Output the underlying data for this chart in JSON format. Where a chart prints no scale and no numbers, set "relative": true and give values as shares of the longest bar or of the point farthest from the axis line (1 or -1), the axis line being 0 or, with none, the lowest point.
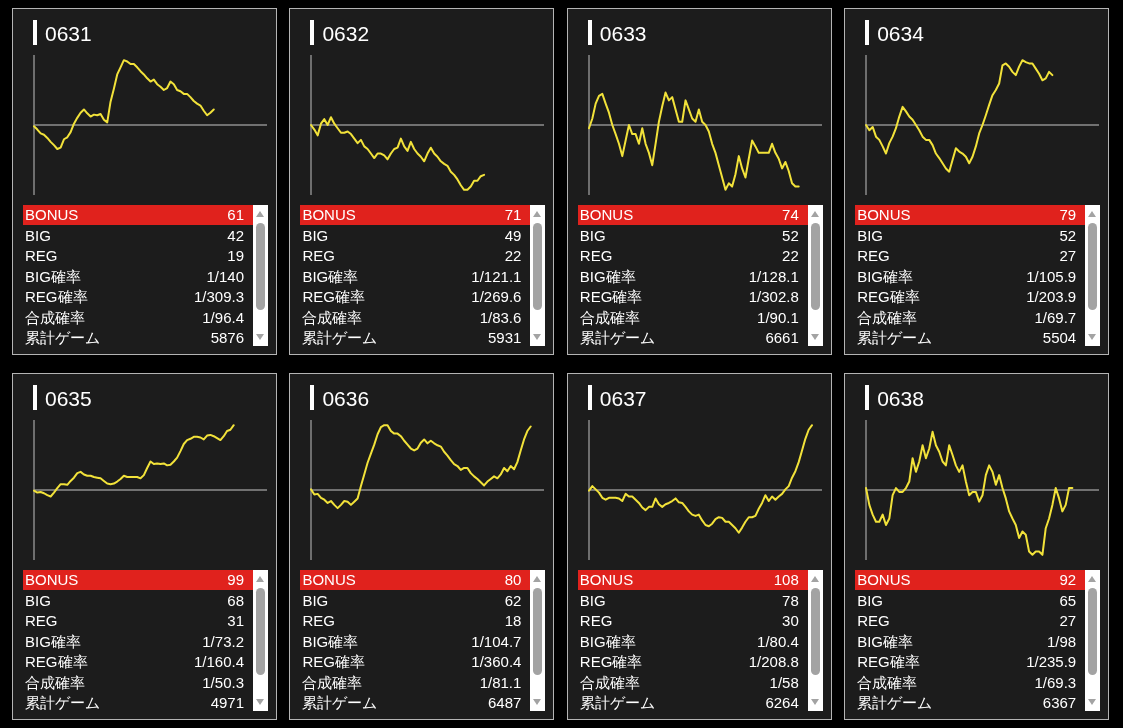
{
  "chart_data": [
    {
      "type": "line",
      "title": "0631",
      "relative": true,
      "color": "#f2e23a",
      "categories": [
        null,
        null,
        null,
        null,
        null,
        null,
        null,
        null,
        null,
        null,
        null,
        null,
        null,
        null,
        null,
        null,
        null,
        null,
        null,
        null,
        null,
        null,
        null,
        null,
        null,
        null,
        null,
        null,
        null,
        null,
        null,
        null,
        null,
        null,
        null,
        null,
        null,
        null,
        null,
        null,
        null,
        null,
        null,
        null,
        null,
        null,
        null,
        null,
        null,
        null,
        null,
        null,
        null,
        null,
        null,
        null,
        null,
        null,
        null,
        null,
        null,
        null,
        null,
        null,
        null,
        null,
        null,
        null,
        null,
        null,
        null
      ],
      "values": [
        -0.02,
        -0.07,
        -0.13,
        -0.15,
        -0.2,
        -0.26,
        -0.31,
        -0.37,
        -0.35,
        -0.22,
        -0.19,
        -0.11,
        0.02,
        0.11,
        0.19,
        0.24,
        0.18,
        0.13,
        0.16,
        0.15,
        0.17,
        0.08,
        0.04,
        0.36,
        0.56,
        0.78,
        0.89,
        1,
        0.98,
        0.94,
        0.94,
        0.89,
        0.83,
        0.78,
        0.72,
        0.67,
        0.7,
        0.63,
        0.59,
        0.54,
        0.57,
        0.67,
        0.63,
        0.54,
        0.52,
        0.48,
        0.48,
        0.43,
        0.37,
        0.33,
        0.3,
        0.22,
        0.15,
        0.19,
        0.24,
        null,
        null,
        null,
        null,
        null,
        null,
        null,
        null,
        null,
        null,
        null,
        null,
        null,
        null,
        null,
        null
      ],
      "annotations": [
        "BONUS",
        "61",
        "BIG",
        "42",
        "REG",
        "19",
        "BIG確率",
        "1/140",
        "REG確率",
        "1/309.3",
        "合成確率",
        "1/96.4",
        "累計ゲーム",
        "5876"
      ]
    },
    {
      "type": "line",
      "title": "0632",
      "relative": true,
      "color": "#f2e23a",
      "categories": [
        null,
        null,
        null,
        null,
        null,
        null,
        null,
        null,
        null,
        null,
        null,
        null,
        null,
        null,
        null,
        null,
        null,
        null,
        null,
        null,
        null,
        null,
        null,
        null,
        null,
        null,
        null,
        null,
        null,
        null,
        null,
        null,
        null,
        null,
        null,
        null,
        null,
        null,
        null,
        null,
        null,
        null,
        null,
        null,
        null,
        null,
        null,
        null,
        null,
        null,
        null,
        null,
        null,
        null,
        null,
        null,
        null,
        null,
        null,
        null,
        null,
        null,
        null,
        null,
        null,
        null,
        null,
        null,
        null,
        null,
        null
      ],
      "values": [
        0,
        -0.07,
        -0.16,
        0.02,
        0.09,
        0,
        0.12,
        0.02,
        -0.05,
        -0.12,
        -0.12,
        -0.1,
        -0.14,
        -0.21,
        -0.28,
        -0.23,
        -0.33,
        -0.37,
        -0.44,
        -0.51,
        -0.44,
        -0.44,
        -0.47,
        -0.53,
        -0.44,
        -0.37,
        -0.35,
        -0.21,
        -0.33,
        -0.4,
        -0.26,
        -0.37,
        -0.44,
        -0.49,
        -0.56,
        -0.44,
        -0.35,
        -0.44,
        -0.49,
        -0.56,
        -0.6,
        -0.63,
        -0.72,
        -0.77,
        -0.84,
        -0.93,
        -1,
        -1,
        -0.95,
        -0.86,
        -0.86,
        -0.79,
        -0.77,
        null,
        null,
        null,
        null,
        null,
        null,
        null,
        null,
        null,
        null,
        null,
        null,
        null,
        null,
        null,
        null,
        null,
        null
      ],
      "annotations": [
        "BONUS",
        "71",
        "BIG",
        "49",
        "REG",
        "22",
        "BIG確率",
        "1/121.1",
        "REG確率",
        "1/269.6",
        "合成確率",
        "1/83.6",
        "累計ゲーム",
        "5931"
      ]
    },
    {
      "type": "line",
      "title": "0633",
      "relative": true,
      "color": "#f2e23a",
      "categories": [
        null,
        null,
        null,
        null,
        null,
        null,
        null,
        null,
        null,
        null,
        null,
        null,
        null,
        null,
        null,
        null,
        null,
        null,
        null,
        null,
        null,
        null,
        null,
        null,
        null,
        null,
        null,
        null,
        null,
        null,
        null,
        null,
        null,
        null,
        null,
        null,
        null,
        null,
        null,
        null,
        null,
        null,
        null,
        null,
        null,
        null,
        null,
        null,
        null,
        null,
        null,
        null,
        null,
        null,
        null,
        null,
        null,
        null,
        null,
        null,
        null,
        null,
        null,
        null,
        null,
        null,
        null,
        null,
        null,
        null,
        null
      ],
      "values": [
        -0.05,
        0.1,
        0.33,
        0.45,
        0.48,
        0.33,
        0.19,
        0,
        -0.14,
        -0.29,
        -0.48,
        -0.24,
        0,
        -0.14,
        -0.14,
        -0.29,
        -0.05,
        -0.29,
        -0.43,
        -0.62,
        -0.29,
        0.05,
        0.29,
        0.5,
        0.38,
        0.43,
        0.24,
        0.05,
        0.05,
        0.38,
        0.24,
        0.1,
        0.05,
        0.24,
        0.05,
        0,
        -0.1,
        -0.29,
        -0.43,
        -0.62,
        -0.81,
        -1,
        -0.9,
        -0.95,
        -0.76,
        -0.48,
        -0.67,
        -0.81,
        -0.52,
        -0.24,
        -0.33,
        -0.43,
        -0.43,
        -0.43,
        -0.43,
        -0.29,
        -0.43,
        -0.52,
        -0.67,
        -0.57,
        -0.71,
        -0.9,
        -0.95,
        -0.95,
        null,
        null,
        null,
        null,
        null,
        null,
        null
      ],
      "annotations": [
        "BONUS",
        "74",
        "BIG",
        "52",
        "REG",
        "22",
        "BIG確率",
        "1/128.1",
        "REG確率",
        "1/302.8",
        "合成確率",
        "1/90.1",
        "累計ゲーム",
        "6661"
      ]
    },
    {
      "type": "line",
      "title": "0634",
      "relative": true,
      "color": "#f2e23a",
      "categories": [
        null,
        null,
        null,
        null,
        null,
        null,
        null,
        null,
        null,
        null,
        null,
        null,
        null,
        null,
        null,
        null,
        null,
        null,
        null,
        null,
        null,
        null,
        null,
        null,
        null,
        null,
        null,
        null,
        null,
        null,
        null,
        null,
        null,
        null,
        null,
        null,
        null,
        null,
        null,
        null,
        null,
        null,
        null,
        null,
        null,
        null,
        null,
        null,
        null,
        null,
        null,
        null,
        null,
        null,
        null,
        null,
        null,
        null,
        null,
        null,
        null,
        null,
        null,
        null,
        null,
        null,
        null,
        null,
        null,
        null,
        null
      ],
      "values": [
        0,
        -0.08,
        -0.03,
        -0.18,
        -0.23,
        -0.33,
        -0.44,
        -0.28,
        -0.18,
        -0.05,
        0.13,
        0.28,
        0.21,
        0.13,
        0.08,
        0,
        -0.08,
        -0.18,
        -0.23,
        -0.23,
        -0.31,
        -0.44,
        -0.51,
        -0.59,
        -0.67,
        -0.72,
        -0.54,
        -0.36,
        -0.41,
        -0.44,
        -0.49,
        -0.59,
        -0.49,
        -0.33,
        -0.13,
        0,
        0.15,
        0.31,
        0.46,
        0.54,
        0.64,
        0.92,
        0.95,
        0.9,
        0.82,
        0.77,
        0.9,
        1,
        0.97,
        0.95,
        0.95,
        0.87,
        0.79,
        0.69,
        0.72,
        0.82,
        0.77,
        null,
        null,
        null,
        null,
        null,
        null,
        null,
        null,
        null,
        null,
        null,
        null,
        null,
        null
      ],
      "annotations": [
        "BONUS",
        "79",
        "BIG",
        "52",
        "REG",
        "27",
        "BIG確率",
        "1/105.9",
        "REG確率",
        "1/203.9",
        "合成確率",
        "1/69.7",
        "累計ゲーム",
        "5504"
      ]
    },
    {
      "type": "line",
      "title": "0635",
      "relative": true,
      "color": "#f2e23a",
      "categories": [
        null,
        null,
        null,
        null,
        null,
        null,
        null,
        null,
        null,
        null,
        null,
        null,
        null,
        null,
        null,
        null,
        null,
        null,
        null,
        null,
        null,
        null,
        null,
        null,
        null,
        null,
        null,
        null,
        null,
        null,
        null,
        null,
        null,
        null,
        null,
        null,
        null,
        null,
        null,
        null,
        null,
        null,
        null,
        null,
        null,
        null,
        null,
        null,
        null,
        null,
        null,
        null,
        null,
        null,
        null,
        null,
        null,
        null,
        null,
        null,
        null,
        null,
        null,
        null,
        null,
        null,
        null,
        null,
        null,
        null,
        null
      ],
      "values": [
        -0.01,
        -0.04,
        -0.03,
        -0.05,
        -0.08,
        -0.1,
        -0.04,
        0.03,
        0.09,
        0.09,
        0.08,
        0.14,
        0.19,
        0.26,
        0.28,
        0.24,
        0.22,
        0.22,
        0.2,
        0.19,
        0.18,
        0.14,
        0.1,
        0.09,
        0.1,
        0.13,
        0.17,
        0.22,
        0.2,
        0.2,
        0.2,
        0.2,
        0.18,
        0.23,
        0.34,
        0.44,
        0.4,
        0.41,
        0.4,
        0.41,
        0.38,
        0.39,
        0.44,
        0.5,
        0.6,
        0.71,
        0.77,
        0.79,
        0.82,
        0.82,
        0.81,
        0.78,
        0.84,
        0.85,
        0.83,
        0.8,
        0.77,
        0.83,
        0.91,
        0.93,
        1,
        null,
        null,
        null,
        null,
        null,
        null,
        null,
        null,
        null,
        null
      ],
      "annotations": [
        "BONUS",
        "99",
        "BIG",
        "68",
        "REG",
        "31",
        "BIG確率",
        "1/73.2",
        "REG確率",
        "1/160.4",
        "合成確率",
        "1/50.3",
        "累計ゲーム",
        "4971"
      ]
    },
    {
      "type": "line",
      "title": "0636",
      "relative": true,
      "color": "#f2e23a",
      "categories": [
        null,
        null,
        null,
        null,
        null,
        null,
        null,
        null,
        null,
        null,
        null,
        null,
        null,
        null,
        null,
        null,
        null,
        null,
        null,
        null,
        null,
        null,
        null,
        null,
        null,
        null,
        null,
        null,
        null,
        null,
        null,
        null,
        null,
        null,
        null,
        null,
        null,
        null,
        null,
        null,
        null,
        null,
        null,
        null,
        null,
        null,
        null,
        null,
        null,
        null,
        null,
        null,
        null,
        null,
        null,
        null,
        null,
        null,
        null,
        null,
        null,
        null,
        null,
        null,
        null,
        null,
        null,
        null,
        null,
        null,
        null
      ],
      "values": [
        0.01,
        -0.07,
        -0.06,
        -0.12,
        -0.15,
        -0.2,
        -0.17,
        -0.23,
        -0.28,
        -0.23,
        -0.17,
        -0.18,
        -0.23,
        -0.18,
        -0.13,
        0.06,
        0.24,
        0.42,
        0.56,
        0.7,
        0.86,
        0.97,
        1,
        1,
        0.91,
        0.87,
        0.87,
        0.83,
        0.76,
        0.7,
        0.64,
        0.61,
        0.64,
        0.73,
        0.78,
        0.72,
        0.76,
        0.72,
        0.69,
        0.67,
        0.59,
        0.53,
        0.46,
        0.4,
        0.37,
        0.31,
        0.34,
        0.34,
        0.26,
        0.21,
        0.17,
        0.12,
        0.07,
        0.13,
        0.17,
        0.21,
        0.18,
        0.24,
        0.34,
        0.29,
        0.37,
        0.32,
        0.43,
        0.61,
        0.78,
        0.91,
        0.98,
        null,
        null,
        null,
        null
      ],
      "annotations": [
        "BONUS",
        "80",
        "BIG",
        "62",
        "REG",
        "18",
        "BIG確率",
        "1/104.7",
        "REG確率",
        "1/360.4",
        "合成確率",
        "1/81.1",
        "累計ゲーム",
        "6487"
      ]
    },
    {
      "type": "line",
      "title": "0637",
      "relative": true,
      "color": "#f2e23a",
      "categories": [
        null,
        null,
        null,
        null,
        null,
        null,
        null,
        null,
        null,
        null,
        null,
        null,
        null,
        null,
        null,
        null,
        null,
        null,
        null,
        null,
        null,
        null,
        null,
        null,
        null,
        null,
        null,
        null,
        null,
        null,
        null,
        null,
        null,
        null,
        null,
        null,
        null,
        null,
        null,
        null,
        null,
        null,
        null,
        null,
        null,
        null,
        null,
        null,
        null,
        null,
        null,
        null,
        null,
        null,
        null,
        null,
        null,
        null,
        null,
        null,
        null,
        null,
        null,
        null,
        null,
        null,
        null,
        null,
        null,
        null,
        null
      ],
      "values": [
        -0.01,
        0.06,
        0.01,
        -0.04,
        -0.12,
        -0.15,
        -0.12,
        -0.12,
        -0.12,
        -0.13,
        -0.17,
        -0.06,
        -0.1,
        -0.1,
        -0.15,
        -0.2,
        -0.27,
        -0.31,
        -0.26,
        -0.26,
        -0.13,
        -0.22,
        -0.26,
        -0.22,
        -0.2,
        -0.17,
        -0.13,
        -0.19,
        -0.2,
        -0.26,
        -0.33,
        -0.38,
        -0.4,
        -0.38,
        -0.47,
        -0.54,
        -0.56,
        -0.52,
        -0.45,
        -0.42,
        -0.43,
        -0.49,
        -0.49,
        -0.54,
        -0.59,
        -0.66,
        -0.58,
        -0.49,
        -0.42,
        -0.42,
        -0.4,
        -0.29,
        -0.2,
        -0.08,
        -0.17,
        -0.1,
        -0.15,
        -0.1,
        -0.06,
        0.01,
        0.06,
        0.19,
        0.29,
        0.43,
        0.61,
        0.79,
        0.93,
        1,
        null,
        null,
        null
      ],
      "annotations": [
        "BONUS",
        "108",
        "BIG",
        "78",
        "REG",
        "30",
        "BIG確率",
        "1/80.4",
        "REG確率",
        "1/208.8",
        "合成確率",
        "1/58",
        "累計ゲーム",
        "6264"
      ]
    },
    {
      "type": "line",
      "title": "0638",
      "relative": true,
      "color": "#f2e23a",
      "categories": [
        null,
        null,
        null,
        null,
        null,
        null,
        null,
        null,
        null,
        null,
        null,
        null,
        null,
        null,
        null,
        null,
        null,
        null,
        null,
        null,
        null,
        null,
        null,
        null,
        null,
        null,
        null,
        null,
        null,
        null,
        null,
        null,
        null,
        null,
        null,
        null,
        null,
        null,
        null,
        null,
        null,
        null,
        null,
        null,
        null,
        null,
        null,
        null,
        null,
        null,
        null,
        null,
        null,
        null,
        null,
        null,
        null,
        null,
        null,
        null,
        null,
        null,
        null,
        null,
        null,
        null,
        null,
        null,
        null,
        null,
        null
      ],
      "values": [
        0.03,
        -0.23,
        -0.38,
        -0.49,
        -0.49,
        -0.38,
        -0.54,
        -0.44,
        -0.08,
        0.03,
        -0.03,
        -0.03,
        0.03,
        0.13,
        0.49,
        0.28,
        0.44,
        0.69,
        0.49,
        0.64,
        0.9,
        0.69,
        0.59,
        0.44,
        0.38,
        0.69,
        0.54,
        0.38,
        0.28,
        0.38,
        0.13,
        -0.08,
        -0.03,
        -0.03,
        -0.18,
        -0.08,
        0.23,
        0.38,
        0.28,
        0.08,
        0.23,
        0.03,
        -0.13,
        -0.33,
        -0.44,
        -0.54,
        -0.74,
        -0.64,
        -0.69,
        -0.95,
        -1,
        -0.95,
        -0.95,
        -1,
        -0.59,
        -0.44,
        -0.23,
        0.03,
        -0.13,
        -0.33,
        -0.23,
        0.03,
        0.03,
        null,
        null,
        null,
        null,
        null,
        null,
        null,
        null
      ],
      "annotations": [
        "BONUS",
        "92",
        "BIG",
        "65",
        "REG",
        "27",
        "BIG確率",
        "1/98",
        "REG確率",
        "1/235.9",
        "合成確率",
        "1/69.3",
        "累計ゲーム",
        "6367"
      ]
    }
  ]
}
